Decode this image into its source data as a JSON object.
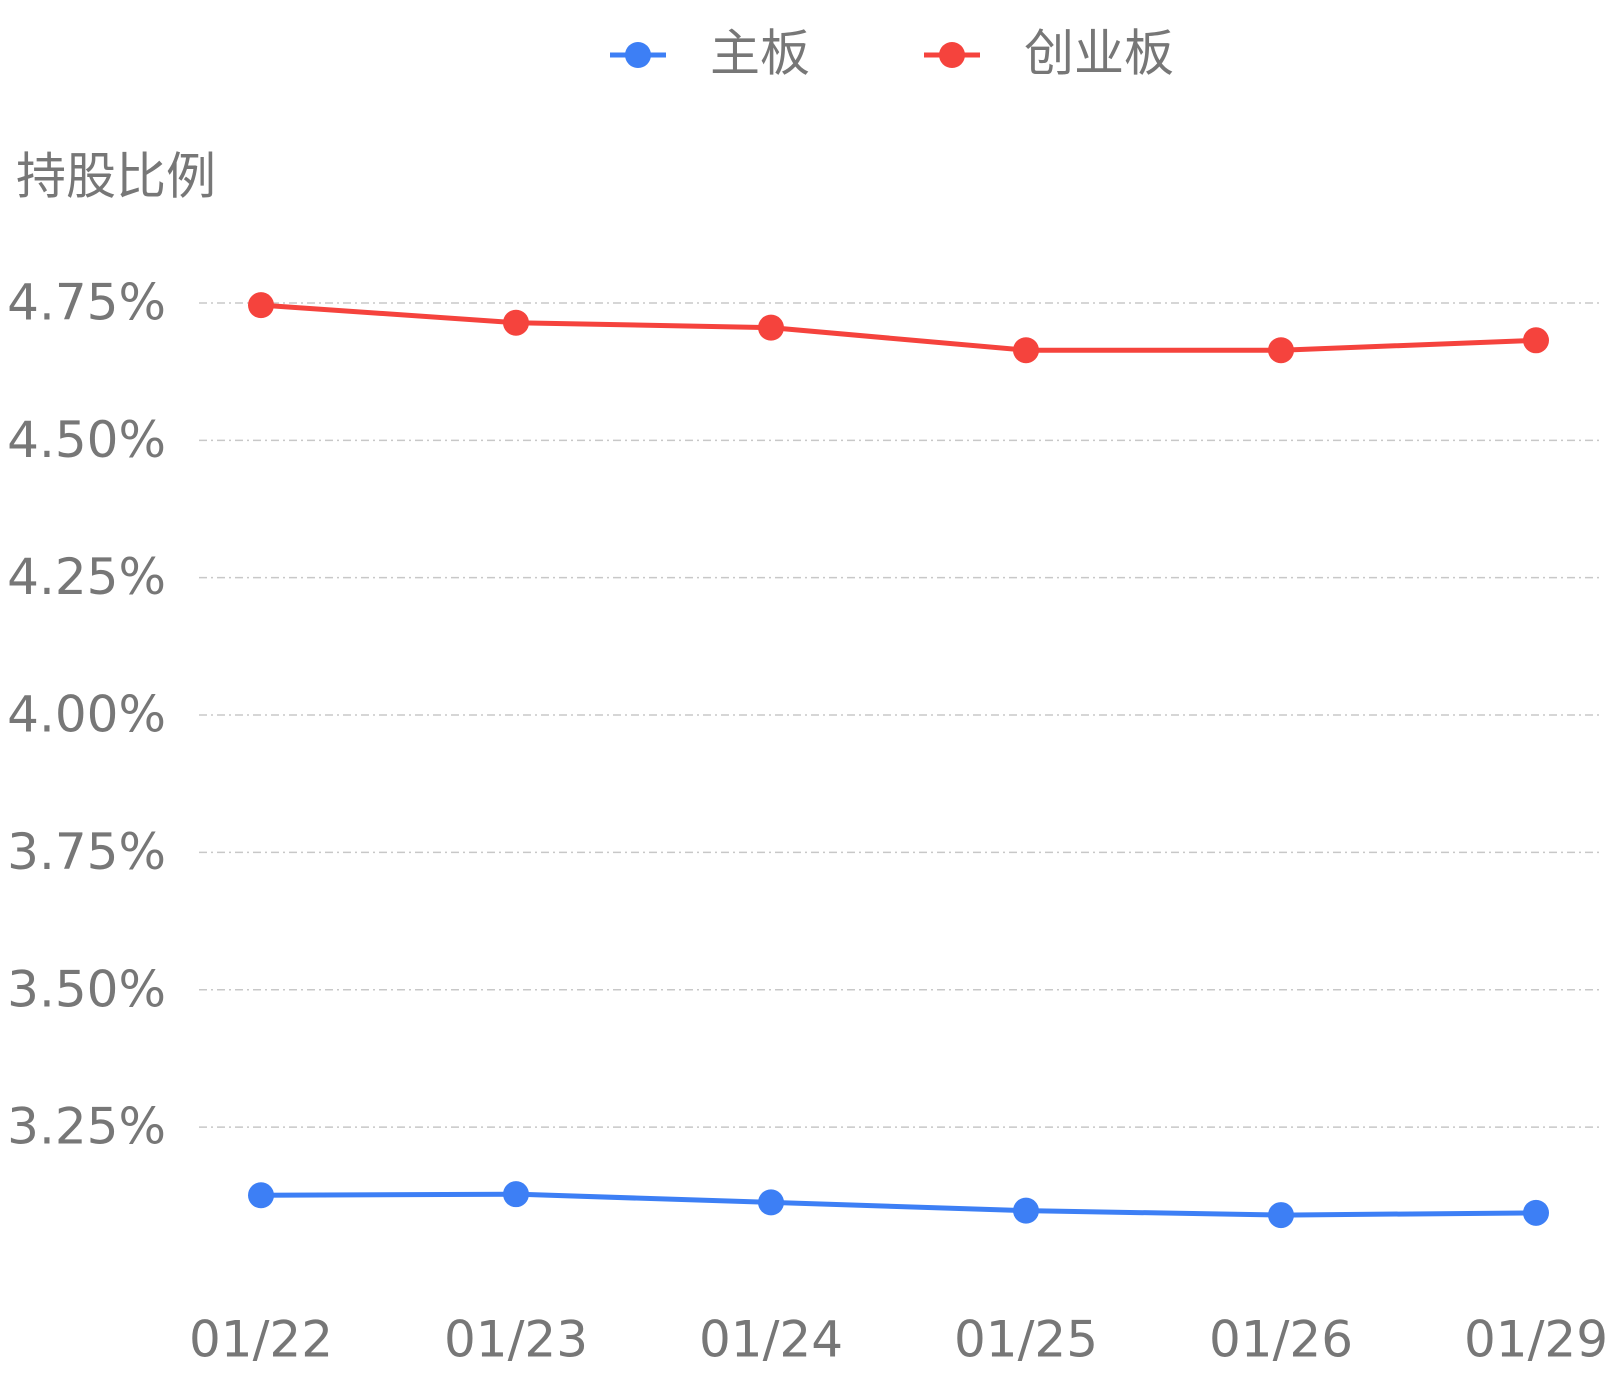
{
  "chart_data": {
    "type": "line",
    "y_axis_label": "持股比例",
    "categories": [
      "01/22",
      "01/23",
      "01/24",
      "01/25",
      "01/26",
      "01/29"
    ],
    "series": [
      {
        "name": "主板",
        "color": "#3d7ff5",
        "values": [
          3.126,
          3.128,
          3.113,
          3.098,
          3.09,
          3.094
        ]
      },
      {
        "name": "创业板",
        "color": "#f5433d",
        "values": [
          4.746,
          4.714,
          4.705,
          4.664,
          4.664,
          4.682
        ]
      }
    ],
    "ylim": [
      2.97,
      4.85
    ],
    "yticks": [
      {
        "value": 3.25,
        "label": "3.25%"
      },
      {
        "value": 3.5,
        "label": "3.50%"
      },
      {
        "value": 3.75,
        "label": "3.75%"
      },
      {
        "value": 4.0,
        "label": "4.00%"
      },
      {
        "value": 4.25,
        "label": "4.25%"
      },
      {
        "value": 4.5,
        "label": "4.50%"
      },
      {
        "value": 4.75,
        "label": "4.75%"
      }
    ],
    "grid": true,
    "legend": "top"
  }
}
